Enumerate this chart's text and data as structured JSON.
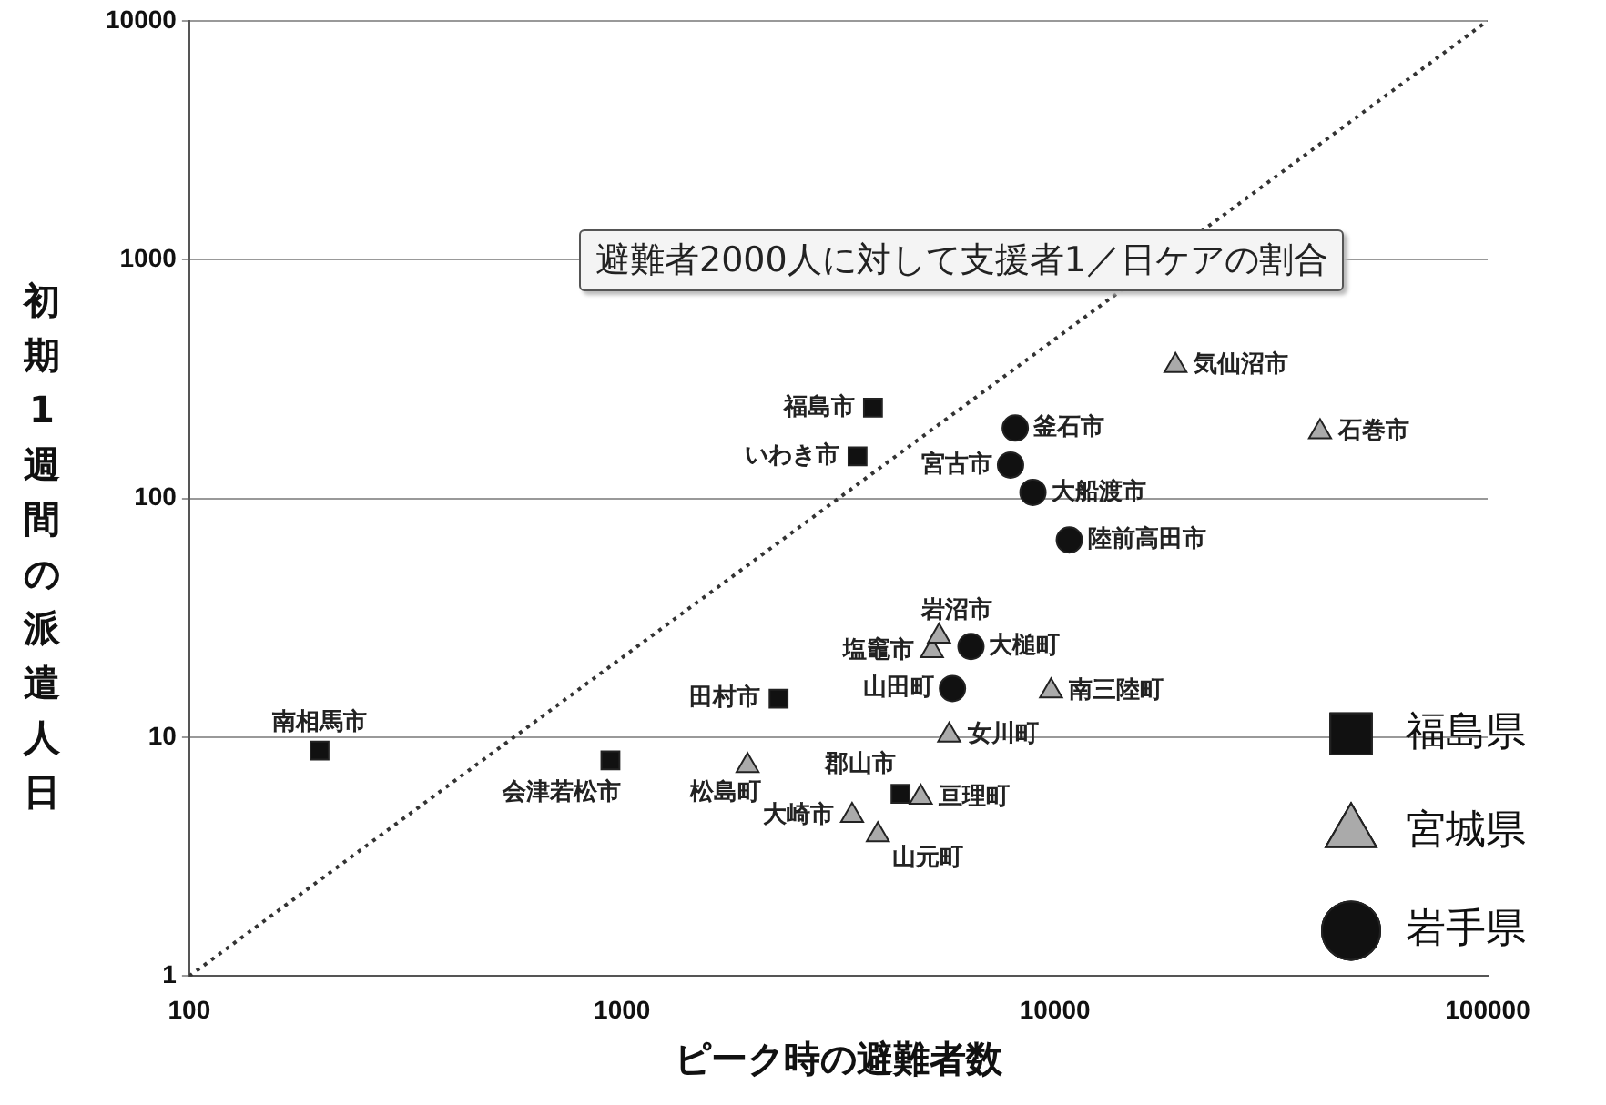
{
  "chart_data": {
    "type": "scatter",
    "xlabel": "ピーク時の避難者数",
    "ylabel": "初期1週間の派遣人日",
    "log": "xy",
    "xlim": [
      100,
      100000
    ],
    "ylim": [
      1,
      10000
    ],
    "xticks": [
      100,
      1000,
      10000,
      100000
    ],
    "yticks": [
      1,
      10,
      100,
      1000,
      10000
    ],
    "grid": "y",
    "legend": "bottom right",
    "series": [
      {
        "name": "福島県",
        "color": "#111111",
        "marker": "square",
        "x": [
          200,
          940,
          2300,
          3800,
          3500,
          4400
        ],
        "values": [
          8.8,
          8,
          14.5,
          240,
          150,
          5.8
        ]
      },
      {
        "name": "宮城県",
        "color": "#aaaaaa",
        "marker": "triangle",
        "x": [
          4900,
          1950,
          3400,
          3900,
          5700,
          5200,
          5400,
          9800,
          19000,
          41000
        ],
        "values": [
          5.6,
          7.6,
          4.7,
          3.9,
          10.2,
          23,
          26.5,
          15.6,
          360,
          190
        ]
      },
      {
        "name": "岩手県",
        "color": "#111111",
        "marker": "circle",
        "x": [
          8100,
          7900,
          8900,
          10800,
          6400,
          5800
        ],
        "values": [
          197,
          138,
          106,
          67,
          24,
          16
        ]
      },
      {
        "type": "line",
        "color": "#333333",
        "marker": "none",
        "line_style": "dotted",
        "x": [
          100,
          100000
        ],
        "values": [
          1,
          10000
        ]
      }
    ],
    "annotations": [
      {
        "text": "南相馬市",
        "x": 200,
        "y": 8.8
      },
      {
        "text": "会津若松市",
        "x": 940,
        "y": 8
      },
      {
        "text": "田村市",
        "x": 2300,
        "y": 14.5
      },
      {
        "text": "福島市",
        "x": 3800,
        "y": 240
      },
      {
        "text": "いわき市",
        "x": 3500,
        "y": 150
      },
      {
        "text": "郡山市",
        "x": 4400,
        "y": 5.8
      },
      {
        "text": "亘理町",
        "x": 4900,
        "y": 5.6
      },
      {
        "text": "松島町",
        "x": 1950,
        "y": 7.6
      },
      {
        "text": "大崎市",
        "x": 3400,
        "y": 4.7
      },
      {
        "text": "山元町",
        "x": 3900,
        "y": 3.9
      },
      {
        "text": "女川町",
        "x": 5700,
        "y": 10.2
      },
      {
        "text": "塩竈市",
        "x": 5200,
        "y": 23
      },
      {
        "text": "岩沼市",
        "x": 5400,
        "y": 26.5
      },
      {
        "text": "南三陸町",
        "x": 9800,
        "y": 15.6
      },
      {
        "text": "気仙沼市",
        "x": 19000,
        "y": 360
      },
      {
        "text": "石巻市",
        "x": 41000,
        "y": 190
      },
      {
        "text": "釜石市",
        "x": 8100,
        "y": 197
      },
      {
        "text": "宮古市",
        "x": 7900,
        "y": 138
      },
      {
        "text": "大船渡市",
        "x": 8900,
        "y": 106
      },
      {
        "text": "陸前高田市",
        "x": 10800,
        "y": 67
      },
      {
        "text": "大槌町",
        "x": 6400,
        "y": 24
      },
      {
        "text": "山田町",
        "x": 5800,
        "y": 16
      },
      "避難者2000人に対して支援者1／日ケアの割合"
    ]
  }
}
